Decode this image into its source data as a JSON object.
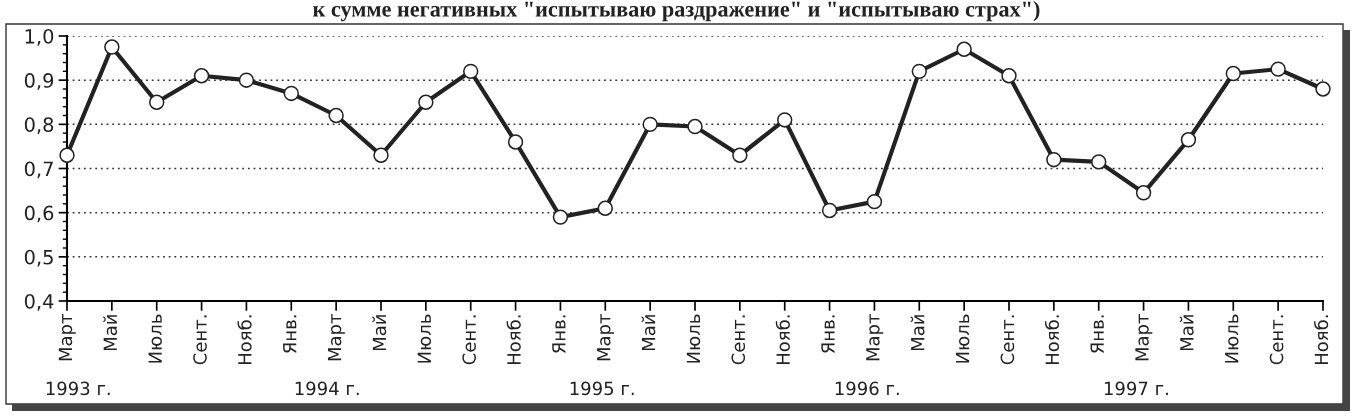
{
  "chart_data": {
    "type": "line",
    "title": "к сумме негативных \"испытываю раздражение\" и \"испытываю страх\")",
    "categories": [
      "Март",
      "Май",
      "Июль",
      "Сент.",
      "Нояб.",
      "Янв.",
      "Март",
      "Май",
      "Июль",
      "Сент.",
      "Нояб.",
      "Янв.",
      "Март",
      "Май",
      "Июль",
      "Сент.",
      "Нояб.",
      "Янв.",
      "Март",
      "Май",
      "Июль",
      "Сент.",
      "Нояб.",
      "Янв.",
      "Март",
      "Май",
      "Июль",
      "Сент.",
      "Нояб."
    ],
    "series": [
      {
        "color": "#222222",
        "values": [
          0.73,
          0.975,
          0.85,
          0.91,
          0.9,
          0.87,
          0.82,
          0.73,
          0.85,
          0.92,
          0.76,
          0.59,
          0.61,
          0.8,
          0.795,
          0.73,
          0.81,
          0.605,
          0.625,
          0.92,
          0.97,
          0.91,
          0.72,
          0.715,
          0.645,
          0.765,
          0.915,
          0.925,
          0.88
        ]
      }
    ],
    "ylim": [
      0.4,
      1.0
    ],
    "yticks": [
      {
        "value": 0.4,
        "label": "0,4"
      },
      {
        "value": 0.5,
        "label": "0,5"
      },
      {
        "value": 0.6,
        "label": "0,6"
      },
      {
        "value": 0.7,
        "label": "0,7"
      },
      {
        "value": 0.8,
        "label": "0,8"
      },
      {
        "value": 0.9,
        "label": "0,9"
      },
      {
        "value": 1.0,
        "label": "1,0"
      }
    ],
    "grid": "y",
    "marker": "circle",
    "line_style": "solid",
    "annotations": [
      "1993 г.",
      "1994 г.",
      "1995 г.",
      "1996 г.",
      "1997 г."
    ]
  }
}
